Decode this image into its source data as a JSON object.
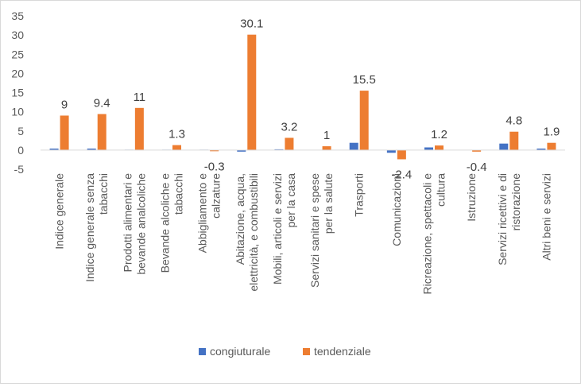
{
  "chart_data": {
    "type": "bar",
    "categories": [
      "Indice generale",
      "Indice generale senza tabacchi",
      "Prodotti alimentari e bevande analcoliche",
      "Bevande alcoliche e tabacchi",
      "Abbigliamento e calzature",
      "Abitazione, acqua, elettricità, e combustibili",
      "Mobili, articoli e servizi per la casa",
      "Servizi sanitari e spese per la salute",
      "Trasporti",
      "Comunicazioni",
      "Ricreazione, spettacoli e cultura",
      "Istruzione",
      "Servizi ricettivi e di ristorazione",
      "Altri beni e servizi"
    ],
    "category_lines": [
      [
        "Indice generale"
      ],
      [
        "Indice generale senza",
        "tabacchi"
      ],
      [
        "Prodotti alimentari e",
        "bevande analcoliche"
      ],
      [
        "Bevande alcoliche e",
        "tabacchi"
      ],
      [
        "Abbigliamento e",
        "calzature"
      ],
      [
        "Abitazione, acqua,",
        "elettricità, e combustibili"
      ],
      [
        "Mobili, articoli e servizi",
        "per la casa"
      ],
      [
        "Servizi sanitari e spese",
        "per la salute"
      ],
      [
        "Trasporti"
      ],
      [
        "Comunicazioni"
      ],
      [
        "Ricreazione, spettacoli e",
        "cultura"
      ],
      [
        "Istruzione"
      ],
      [
        "Servizi ricettivi e di",
        "ristorazione"
      ],
      [
        "Altri beni e servizi"
      ]
    ],
    "series": [
      {
        "name": "congiuturale",
        "color": "#4472c4",
        "values": [
          0.4,
          0.4,
          0.1,
          0.1,
          0.1,
          -0.4,
          0.2,
          0.0,
          1.9,
          -0.7,
          0.7,
          0.0,
          1.7,
          0.4
        ],
        "labels": []
      },
      {
        "name": "tendenziale",
        "color": "#ed7d31",
        "values": [
          9,
          9.4,
          11,
          1.3,
          -0.3,
          30.1,
          3.2,
          1,
          15.5,
          -2.4,
          1.2,
          -0.4,
          4.8,
          1.9
        ],
        "labels": [
          "9",
          "9.4",
          "11",
          "1.3",
          "-0.3",
          "30.1",
          "3.2",
          "1",
          "15.5",
          "-2.4",
          "1.2",
          "-0.4",
          "4.8",
          "1.9"
        ]
      }
    ],
    "ylim": [
      -5,
      35
    ],
    "yticks": [
      -5,
      0,
      5,
      10,
      15,
      20,
      25,
      30,
      35
    ],
    "grid": false,
    "legend_position": "bottom",
    "title": "",
    "xlabel": "",
    "ylabel": ""
  }
}
